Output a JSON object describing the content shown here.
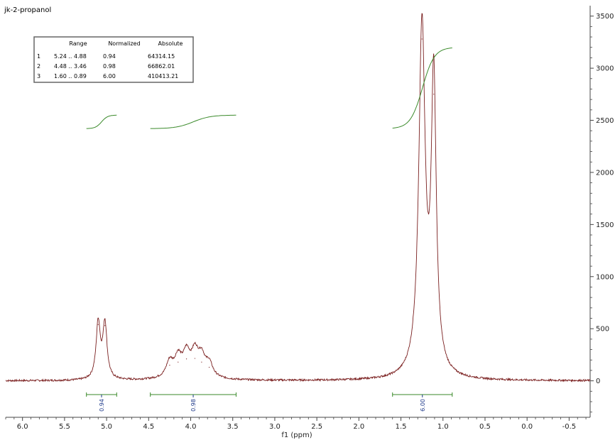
{
  "chart_data": {
    "type": "line",
    "title": "jk-2-propanol",
    "xlabel": "f1 (ppm)",
    "ylabel": "",
    "xlim": [
      6.2,
      -0.75
    ],
    "ylim": [
      -350,
      3600
    ],
    "x_ticks": [
      "6.0",
      "5.5",
      "5.0",
      "4.5",
      "4.0",
      "3.5",
      "3.0",
      "2.5",
      "2.0",
      "1.5",
      "1.0",
      "0.5",
      "0.0",
      "-0.5"
    ],
    "y_ticks": [
      "0",
      "500",
      "1000",
      "1500",
      "2000",
      "2500",
      "3000",
      "3500"
    ],
    "grid": false,
    "colors": {
      "spectrum": "#7a1f1f",
      "integral": "#3a8a2a",
      "label": "#1f3a8a",
      "axis": "#444444"
    },
    "series": [
      {
        "type": "spectrum",
        "peaks": [
          {
            "x": 5.1,
            "y": 540
          },
          {
            "x": 5.02,
            "y": 530
          },
          {
            "x": 4.25,
            "y": 150
          },
          {
            "x": 4.15,
            "y": 180
          },
          {
            "x": 4.05,
            "y": 210
          },
          {
            "x": 3.95,
            "y": 215
          },
          {
            "x": 3.87,
            "y": 180
          },
          {
            "x": 3.78,
            "y": 130
          },
          {
            "x": 1.25,
            "y": 3280
          },
          {
            "x": 1.11,
            "y": 2750
          }
        ]
      }
    ],
    "integrals": [
      {
        "from": 5.24,
        "to": 4.88,
        "value": "0.94"
      },
      {
        "from": 4.48,
        "to": 3.46,
        "value": "0.98"
      },
      {
        "from": 1.6,
        "to": 0.89,
        "value": "6.00"
      }
    ],
    "table": {
      "headers": [
        "",
        "Range",
        "Normalized",
        "Absolute"
      ],
      "rows": [
        [
          "1",
          "5.24 .. 4.88",
          "0.94",
          "64314.15"
        ],
        [
          "2",
          "4.48 .. 3.46",
          "0.98",
          "66862.01"
        ],
        [
          "3",
          "1.60 .. 0.89",
          "6.00",
          "410413.21"
        ]
      ]
    }
  }
}
